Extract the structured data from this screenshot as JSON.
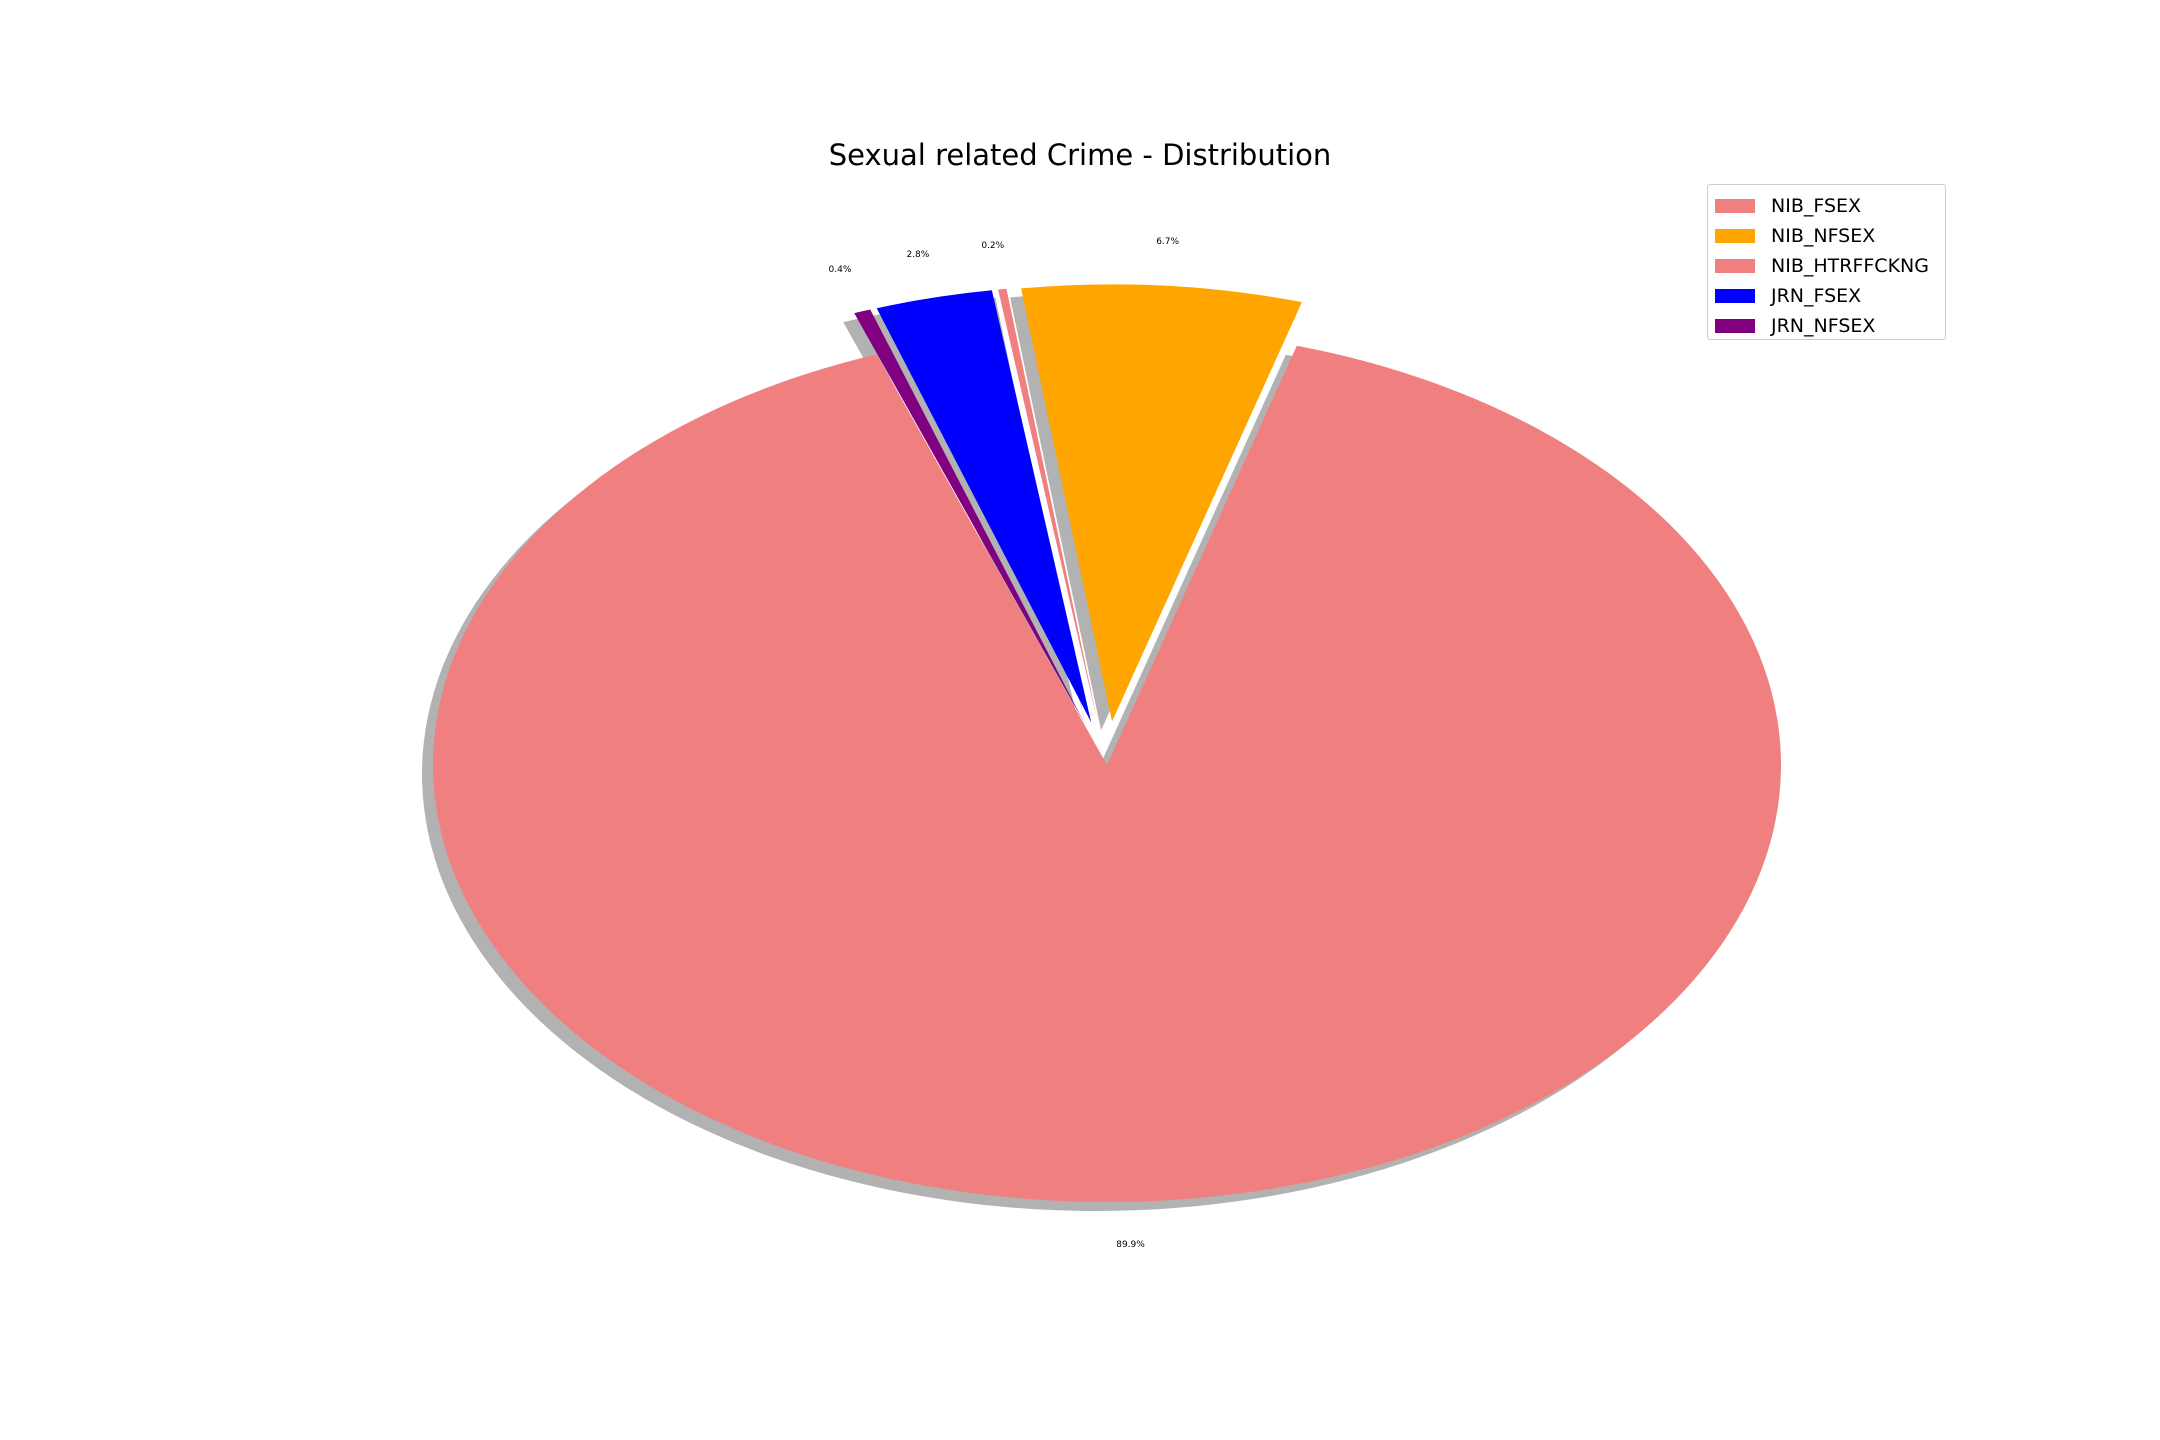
{
  "chart_data": {
    "type": "pie",
    "title": "Sexual related Crime - Distribution",
    "labels": [
      "NIB_FSEX",
      "NIB_NFSEX",
      "NIB_HTRFFCKNG",
      "JRN_FSEX",
      "JRN_NFSEX"
    ],
    "values": [
      89.9,
      6.7,
      0.2,
      2.8,
      0.4
    ],
    "pct_labels": [
      "89.9%",
      "6.7%",
      "0.2%",
      "2.8%",
      "0.4%"
    ],
    "colors": [
      "#F08080",
      "#FFA500",
      "#F08080",
      "#0000FF",
      "#800080"
    ],
    "exploded": [
      false,
      true,
      true,
      true,
      true
    ],
    "shadow": true,
    "legend_position": "top-right"
  }
}
